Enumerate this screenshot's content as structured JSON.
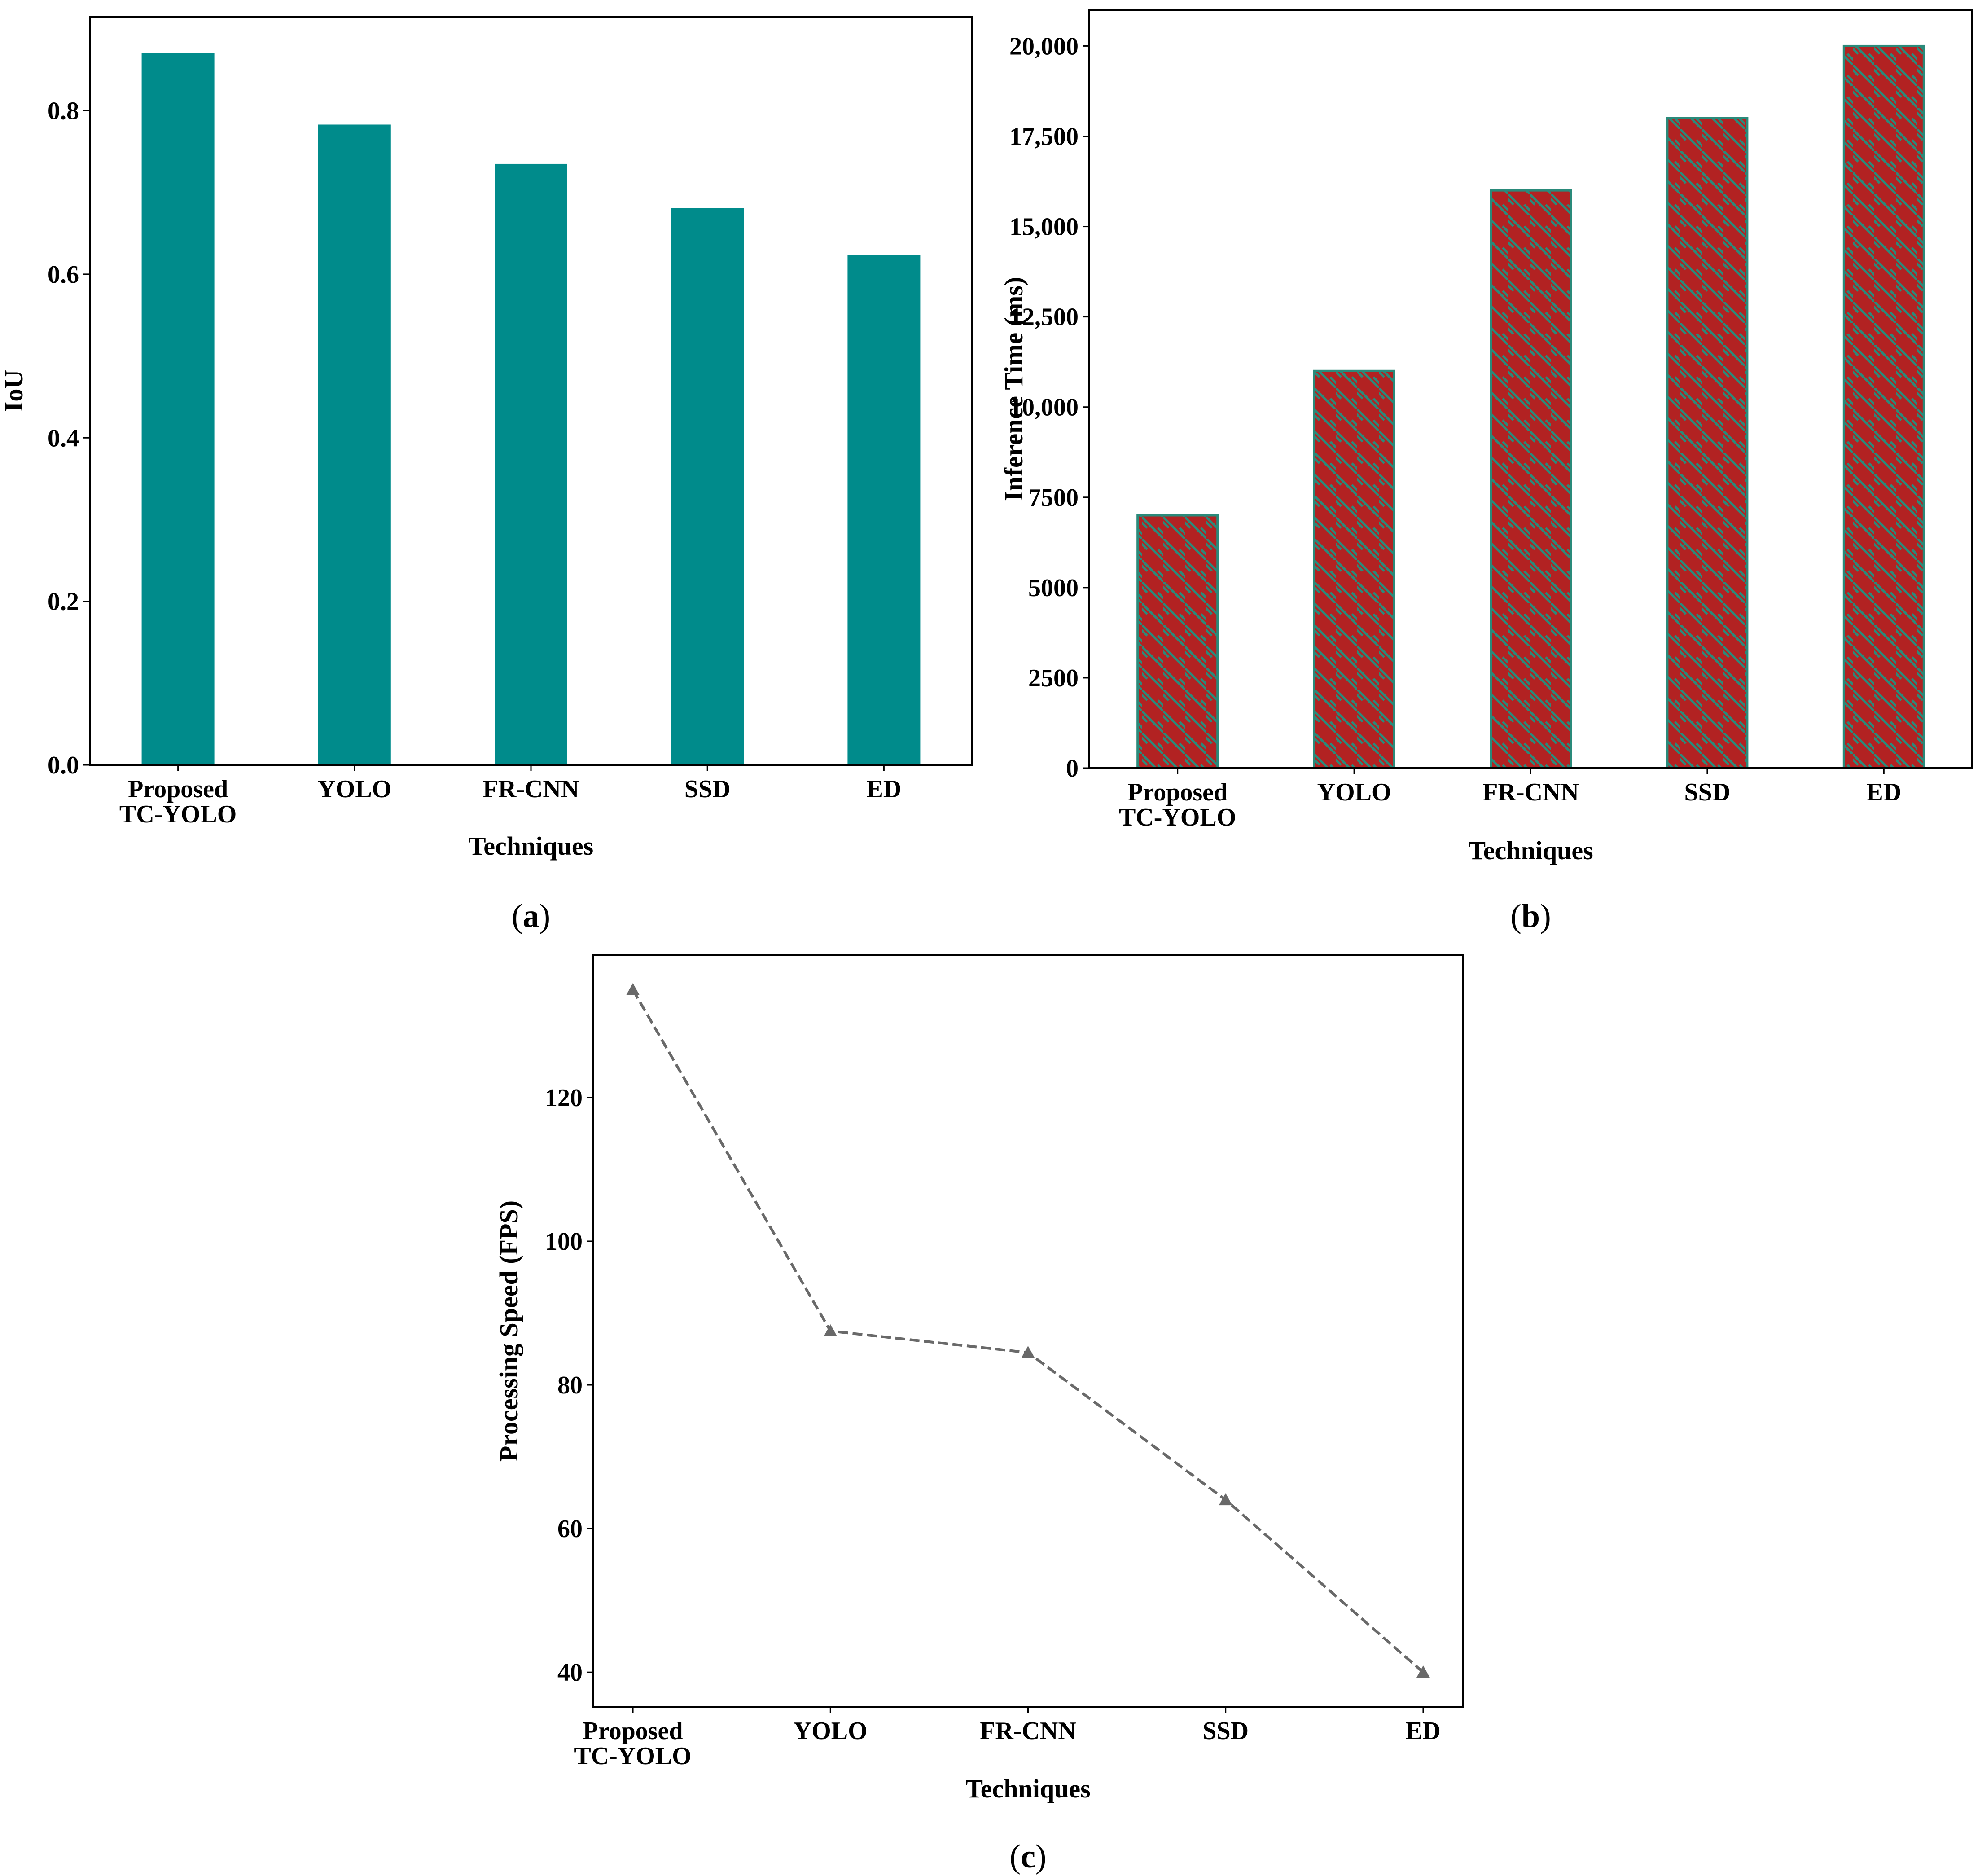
{
  "colors": {
    "bar_a": "#008b8b",
    "bar_b": "#b22222",
    "hatch_b": "#2a8a7a",
    "line_c": "#696969"
  },
  "chart_data": [
    {
      "id": "a",
      "type": "bar",
      "caption_letter": "a",
      "categories": [
        [
          "Proposed",
          "TC-YOLO"
        ],
        [
          "YOLO"
        ],
        [
          "FR-CNN"
        ],
        [
          "SSD"
        ],
        [
          "ED"
        ]
      ],
      "values": [
        0.87,
        0.783,
        0.735,
        0.681,
        0.623
      ],
      "xlabel": "Techniques",
      "ylabel": "IoU",
      "ylim": [
        0,
        0.915
      ],
      "yticks": [
        0.0,
        0.2,
        0.4,
        0.6,
        0.8
      ],
      "ytick_labels": [
        "0.0",
        "0.2",
        "0.4",
        "0.6",
        "0.8"
      ]
    },
    {
      "id": "b",
      "type": "bar",
      "caption_letter": "b",
      "hatched": true,
      "categories": [
        [
          "Proposed",
          "TC-YOLO"
        ],
        [
          "YOLO"
        ],
        [
          "FR-CNN"
        ],
        [
          "SSD"
        ],
        [
          "ED"
        ]
      ],
      "values": [
        7000,
        11000,
        16000,
        18000,
        20000
      ],
      "xlabel": "Techniques",
      "ylabel": "Inference Time (ms)",
      "ylim": [
        0,
        21000
      ],
      "yticks": [
        0,
        2500,
        5000,
        7500,
        10000,
        12500,
        15000,
        17500,
        20000
      ],
      "ytick_labels": [
        "0",
        "2500",
        "5000",
        "7500",
        "10,000",
        "12,500",
        "15,000",
        "17,500",
        "20,000"
      ]
    },
    {
      "id": "c",
      "type": "line",
      "caption_letter": "c",
      "categories": [
        [
          "Proposed",
          "TC-YOLO"
        ],
        [
          "YOLO"
        ],
        [
          "FR-CNN"
        ],
        [
          "SSD"
        ],
        [
          "ED"
        ]
      ],
      "values": [
        135,
        87.5,
        84.5,
        64,
        40
      ],
      "marker": "triangle",
      "linestyle": "dashed",
      "xlabel": "Techniques",
      "ylabel": "Processing Speed (FPS)",
      "ylim": [
        35.2,
        139.8
      ],
      "yticks": [
        40,
        60,
        80,
        100,
        120
      ],
      "ytick_labels": [
        "40",
        "60",
        "80",
        "100",
        "120"
      ]
    }
  ]
}
